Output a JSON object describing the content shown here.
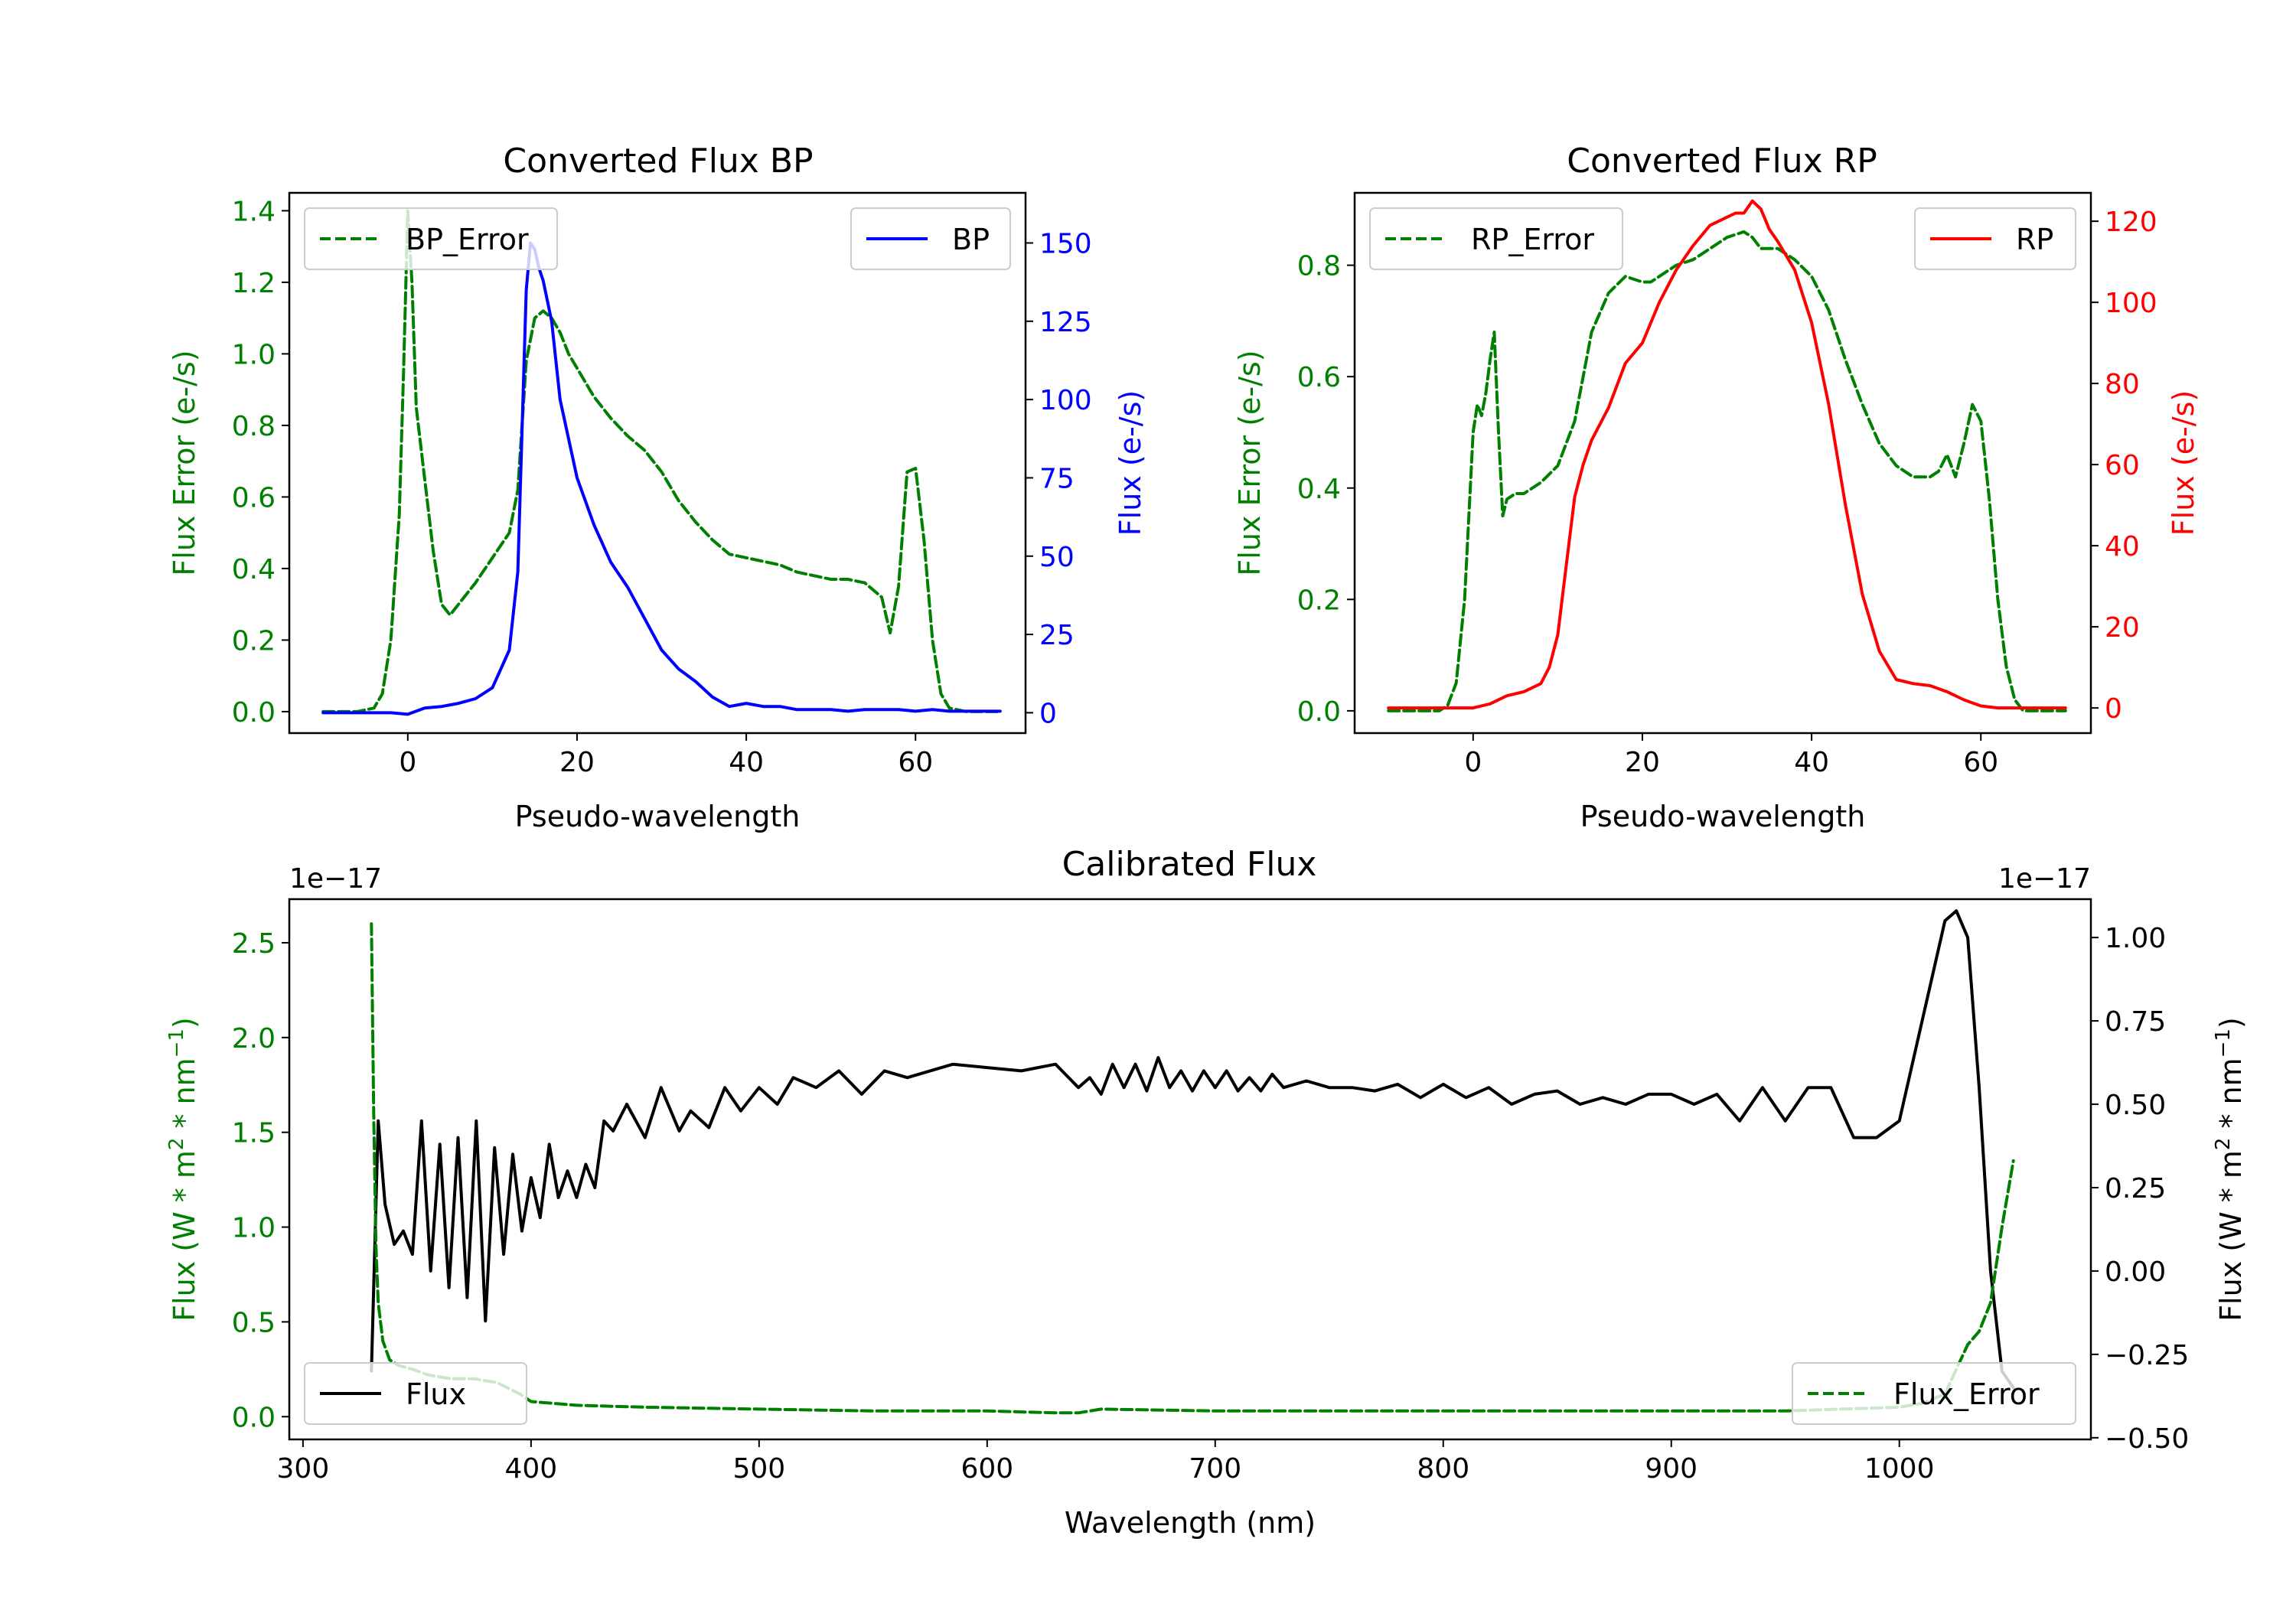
{
  "chart_data": [
    {
      "id": "bp",
      "type": "line",
      "title": "Converted Flux BP",
      "xlabel": "Pseudo-wavelength",
      "ylabel_left": "Flux Error (e-/s)",
      "ylabel_right": "Flux (e-/s)",
      "xlim": [
        -14,
        73
      ],
      "ylim_left": [
        -0.06,
        1.45
      ],
      "ylim_right": [
        -6.5,
        166
      ],
      "xticks": [
        0,
        20,
        40,
        60
      ],
      "yticks_left": [
        0.0,
        0.2,
        0.4,
        0.6,
        0.8,
        1.0,
        1.2,
        1.4
      ],
      "yticks_right": [
        0,
        25,
        50,
        75,
        100,
        125,
        150
      ],
      "left_color": "#008000",
      "right_color": "#0000ff",
      "series": [
        {
          "name": "BP_Error",
          "axis": "left",
          "style": "dashed",
          "color": "#008000",
          "x": [
            -10,
            -6,
            -4,
            -3,
            -2,
            -1,
            -0.5,
            0,
            0.5,
            1,
            2,
            3,
            4,
            5,
            6,
            8,
            10,
            12,
            13,
            14,
            15,
            16,
            17,
            18,
            19,
            20,
            22,
            24,
            26,
            28,
            30,
            32,
            34,
            36,
            38,
            40,
            42,
            44,
            46,
            48,
            50,
            52,
            54,
            56,
            57,
            58,
            59,
            60,
            61,
            62,
            63,
            64,
            66,
            68,
            70
          ],
          "y": [
            0.0,
            0.0,
            0.01,
            0.05,
            0.2,
            0.55,
            0.95,
            1.4,
            1.2,
            0.85,
            0.65,
            0.45,
            0.3,
            0.27,
            0.3,
            0.36,
            0.43,
            0.5,
            0.62,
            0.98,
            1.1,
            1.12,
            1.1,
            1.06,
            1.0,
            0.96,
            0.88,
            0.82,
            0.77,
            0.73,
            0.67,
            0.59,
            0.53,
            0.48,
            0.44,
            0.43,
            0.42,
            0.41,
            0.39,
            0.38,
            0.37,
            0.37,
            0.36,
            0.32,
            0.22,
            0.35,
            0.67,
            0.68,
            0.48,
            0.2,
            0.05,
            0.01,
            0.0,
            0.0,
            0.0
          ]
        },
        {
          "name": "BP",
          "axis": "right",
          "style": "solid",
          "color": "#0000ff",
          "x": [
            -10,
            -4,
            -2,
            0,
            2,
            4,
            6,
            8,
            10,
            12,
            13,
            13.5,
            14,
            14.5,
            15,
            15.5,
            16,
            17,
            18,
            20,
            22,
            24,
            26,
            28,
            30,
            32,
            34,
            36,
            38,
            40,
            42,
            44,
            46,
            48,
            50,
            52,
            54,
            56,
            58,
            60,
            62,
            64,
            66,
            68,
            70
          ],
          "y": [
            0,
            0,
            0,
            -0.5,
            1.5,
            2,
            3,
            4.5,
            8,
            20,
            45,
            90,
            135,
            150,
            148,
            142,
            138,
            125,
            100,
            75,
            60,
            48,
            40,
            30,
            20,
            14,
            10,
            5,
            2,
            3,
            2,
            2,
            1,
            1,
            1,
            0.5,
            1,
            1,
            1,
            0.5,
            1,
            0.5,
            0.5,
            0.5,
            0.5
          ]
        }
      ],
      "legends": [
        {
          "label": "BP_Error",
          "position": "upper-left"
        },
        {
          "label": "BP",
          "position": "upper-right"
        }
      ]
    },
    {
      "id": "rp",
      "type": "line",
      "title": "Converted Flux RP",
      "xlabel": "Pseudo-wavelength",
      "ylabel_left": "Flux Error (e-/s)",
      "ylabel_right": "Flux (e-/s)",
      "xlim": [
        -14,
        73
      ],
      "ylim_left": [
        -0.04,
        0.93
      ],
      "ylim_right": [
        -6.2,
        127
      ],
      "xticks": [
        0,
        20,
        40,
        60
      ],
      "yticks_left": [
        0.0,
        0.2,
        0.4,
        0.6,
        0.8
      ],
      "yticks_right": [
        0,
        20,
        40,
        60,
        80,
        100,
        120
      ],
      "left_color": "#008000",
      "right_color": "#ff0000",
      "series": [
        {
          "name": "RP_Error",
          "axis": "left",
          "style": "dashed",
          "color": "#008000",
          "x": [
            -10,
            -6,
            -4,
            -3,
            -2,
            -1,
            0,
            0.5,
            1,
            1.5,
            2,
            2.5,
            3,
            3.5,
            4,
            5,
            6,
            8,
            10,
            12,
            13,
            14,
            16,
            18,
            20,
            21,
            22,
            24,
            26,
            28,
            30,
            32,
            33,
            34,
            36,
            38,
            40,
            42,
            44,
            46,
            48,
            50,
            52,
            53,
            54,
            55,
            56,
            57,
            58,
            59,
            60,
            61,
            62,
            63,
            64,
            65,
            66,
            68,
            70
          ],
          "y": [
            0.0,
            0.0,
            0.0,
            0.01,
            0.05,
            0.2,
            0.5,
            0.55,
            0.53,
            0.57,
            0.63,
            0.68,
            0.5,
            0.35,
            0.38,
            0.39,
            0.39,
            0.41,
            0.44,
            0.52,
            0.6,
            0.68,
            0.75,
            0.78,
            0.77,
            0.77,
            0.78,
            0.8,
            0.81,
            0.83,
            0.85,
            0.86,
            0.85,
            0.83,
            0.83,
            0.81,
            0.78,
            0.72,
            0.63,
            0.55,
            0.48,
            0.44,
            0.42,
            0.42,
            0.42,
            0.43,
            0.46,
            0.42,
            0.48,
            0.55,
            0.52,
            0.38,
            0.2,
            0.08,
            0.02,
            0.0,
            0.0,
            0.0,
            0.0
          ]
        },
        {
          "name": "RP",
          "axis": "right",
          "style": "solid",
          "color": "#ff0000",
          "x": [
            -10,
            -4,
            -2,
            0,
            2,
            4,
            6,
            8,
            9,
            10,
            11,
            12,
            13,
            14,
            16,
            18,
            20,
            22,
            24,
            26,
            28,
            30,
            31,
            32,
            33,
            34,
            35,
            36,
            38,
            40,
            42,
            44,
            46,
            48,
            50,
            52,
            54,
            56,
            58,
            60,
            62,
            64,
            66,
            68,
            70
          ],
          "y": [
            0,
            0,
            0,
            0,
            1,
            3,
            4,
            6,
            10,
            18,
            35,
            52,
            60,
            66,
            74,
            85,
            90,
            100,
            108,
            114,
            119,
            121,
            122,
            122,
            125,
            123,
            118,
            115,
            108,
            95,
            75,
            50,
            28,
            14,
            7,
            6,
            5.5,
            4,
            2,
            0.5,
            0,
            0,
            0,
            0,
            0
          ]
        }
      ],
      "legends": [
        {
          "label": "RP_Error",
          "position": "upper-left"
        },
        {
          "label": "RP",
          "position": "upper-right"
        }
      ]
    },
    {
      "id": "cal",
      "type": "line",
      "title": "Calibrated Flux",
      "xlabel": "Wavelength (nm)",
      "ylabel_left_base": "Flux (W * m",
      "ylabel_right_base": "Flux (W * m",
      "ylabel_sup1": "2",
      "ylabel_mid": " * nm",
      "ylabel_sup2": "−1",
      "ylabel_end": ")",
      "offset_left": "1e−17",
      "offset_right": "1e−17",
      "xlim": [
        294,
        1084
      ],
      "ylim_left": [
        -0.12,
        2.73
      ],
      "ylim_right": [
        -0.505,
        1.115
      ],
      "xticks": [
        300,
        400,
        500,
        600,
        700,
        800,
        900,
        1000
      ],
      "yticks_left": [
        0.0,
        0.5,
        1.0,
        1.5,
        2.0,
        2.5
      ],
      "yticks_left_labels": [
        "0.0",
        "0.5",
        "1.0",
        "1.5",
        "2.0",
        "2.5"
      ],
      "yticks_right": [
        -0.5,
        -0.25,
        0.0,
        0.25,
        0.5,
        0.75,
        1.0
      ],
      "yticks_right_labels": [
        "−0.50",
        "−0.25",
        "0.00",
        "0.25",
        "0.50",
        "0.75",
        "1.00"
      ],
      "left_color": "#008000",
      "right_color": "#000000",
      "series": [
        {
          "name": "Flux",
          "axis": "right",
          "style": "solid",
          "color": "#000000",
          "x": [
            330,
            333,
            336,
            340,
            344,
            348,
            352,
            356,
            360,
            364,
            368,
            372,
            376,
            380,
            384,
            388,
            392,
            396,
            400,
            404,
            408,
            412,
            416,
            420,
            424,
            428,
            432,
            436,
            442,
            450,
            457,
            465,
            470,
            478,
            485,
            492,
            500,
            508,
            515,
            525,
            535,
            545,
            555,
            565,
            575,
            585,
            600,
            615,
            630,
            640,
            645,
            650,
            655,
            660,
            665,
            670,
            675,
            680,
            685,
            690,
            695,
            700,
            705,
            710,
            715,
            720,
            725,
            730,
            740,
            750,
            760,
            770,
            780,
            790,
            800,
            810,
            820,
            830,
            840,
            850,
            860,
            870,
            880,
            890,
            900,
            910,
            920,
            930,
            940,
            950,
            960,
            970,
            980,
            990,
            1000,
            1010,
            1020,
            1025,
            1030,
            1035,
            1040,
            1045,
            1050
          ],
          "y": [
            -0.3,
            0.45,
            0.2,
            0.08,
            0.12,
            0.05,
            0.45,
            0.0,
            0.38,
            -0.05,
            0.4,
            -0.08,
            0.45,
            -0.15,
            0.37,
            0.05,
            0.35,
            0.12,
            0.28,
            0.16,
            0.38,
            0.22,
            0.3,
            0.22,
            0.32,
            0.25,
            0.45,
            0.42,
            0.5,
            0.4,
            0.55,
            0.42,
            0.48,
            0.43,
            0.55,
            0.48,
            0.55,
            0.5,
            0.58,
            0.55,
            0.6,
            0.53,
            0.6,
            0.58,
            0.6,
            0.62,
            0.61,
            0.6,
            0.62,
            0.55,
            0.58,
            0.53,
            0.62,
            0.55,
            0.62,
            0.54,
            0.64,
            0.55,
            0.6,
            0.54,
            0.6,
            0.55,
            0.6,
            0.54,
            0.58,
            0.54,
            0.59,
            0.55,
            0.57,
            0.55,
            0.55,
            0.54,
            0.56,
            0.52,
            0.56,
            0.52,
            0.55,
            0.5,
            0.53,
            0.54,
            0.5,
            0.52,
            0.5,
            0.53,
            0.53,
            0.5,
            0.53,
            0.45,
            0.55,
            0.45,
            0.55,
            0.55,
            0.4,
            0.4,
            0.45,
            0.75,
            1.05,
            1.08,
            1.0,
            0.55,
            0.0,
            -0.3,
            -0.35
          ]
        },
        {
          "name": "Flux_Error",
          "axis": "left",
          "style": "dashed",
          "color": "#008000",
          "x": [
            330,
            331,
            332,
            333,
            335,
            338,
            342,
            348,
            355,
            365,
            375,
            385,
            395,
            400,
            420,
            450,
            500,
            550,
            600,
            630,
            640,
            650,
            700,
            750,
            800,
            850,
            900,
            950,
            1000,
            1010,
            1020,
            1025,
            1030,
            1035,
            1040,
            1045,
            1050
          ],
          "y": [
            2.6,
            1.6,
            0.9,
            0.6,
            0.4,
            0.3,
            0.27,
            0.25,
            0.22,
            0.2,
            0.2,
            0.18,
            0.12,
            0.08,
            0.06,
            0.05,
            0.04,
            0.03,
            0.03,
            0.02,
            0.02,
            0.04,
            0.03,
            0.03,
            0.03,
            0.03,
            0.03,
            0.03,
            0.05,
            0.07,
            0.12,
            0.25,
            0.38,
            0.45,
            0.6,
            1.0,
            1.35
          ]
        }
      ],
      "legends": [
        {
          "label": "Flux",
          "position": "lower-left"
        },
        {
          "label": "Flux_Error",
          "position": "lower-right"
        }
      ]
    }
  ]
}
